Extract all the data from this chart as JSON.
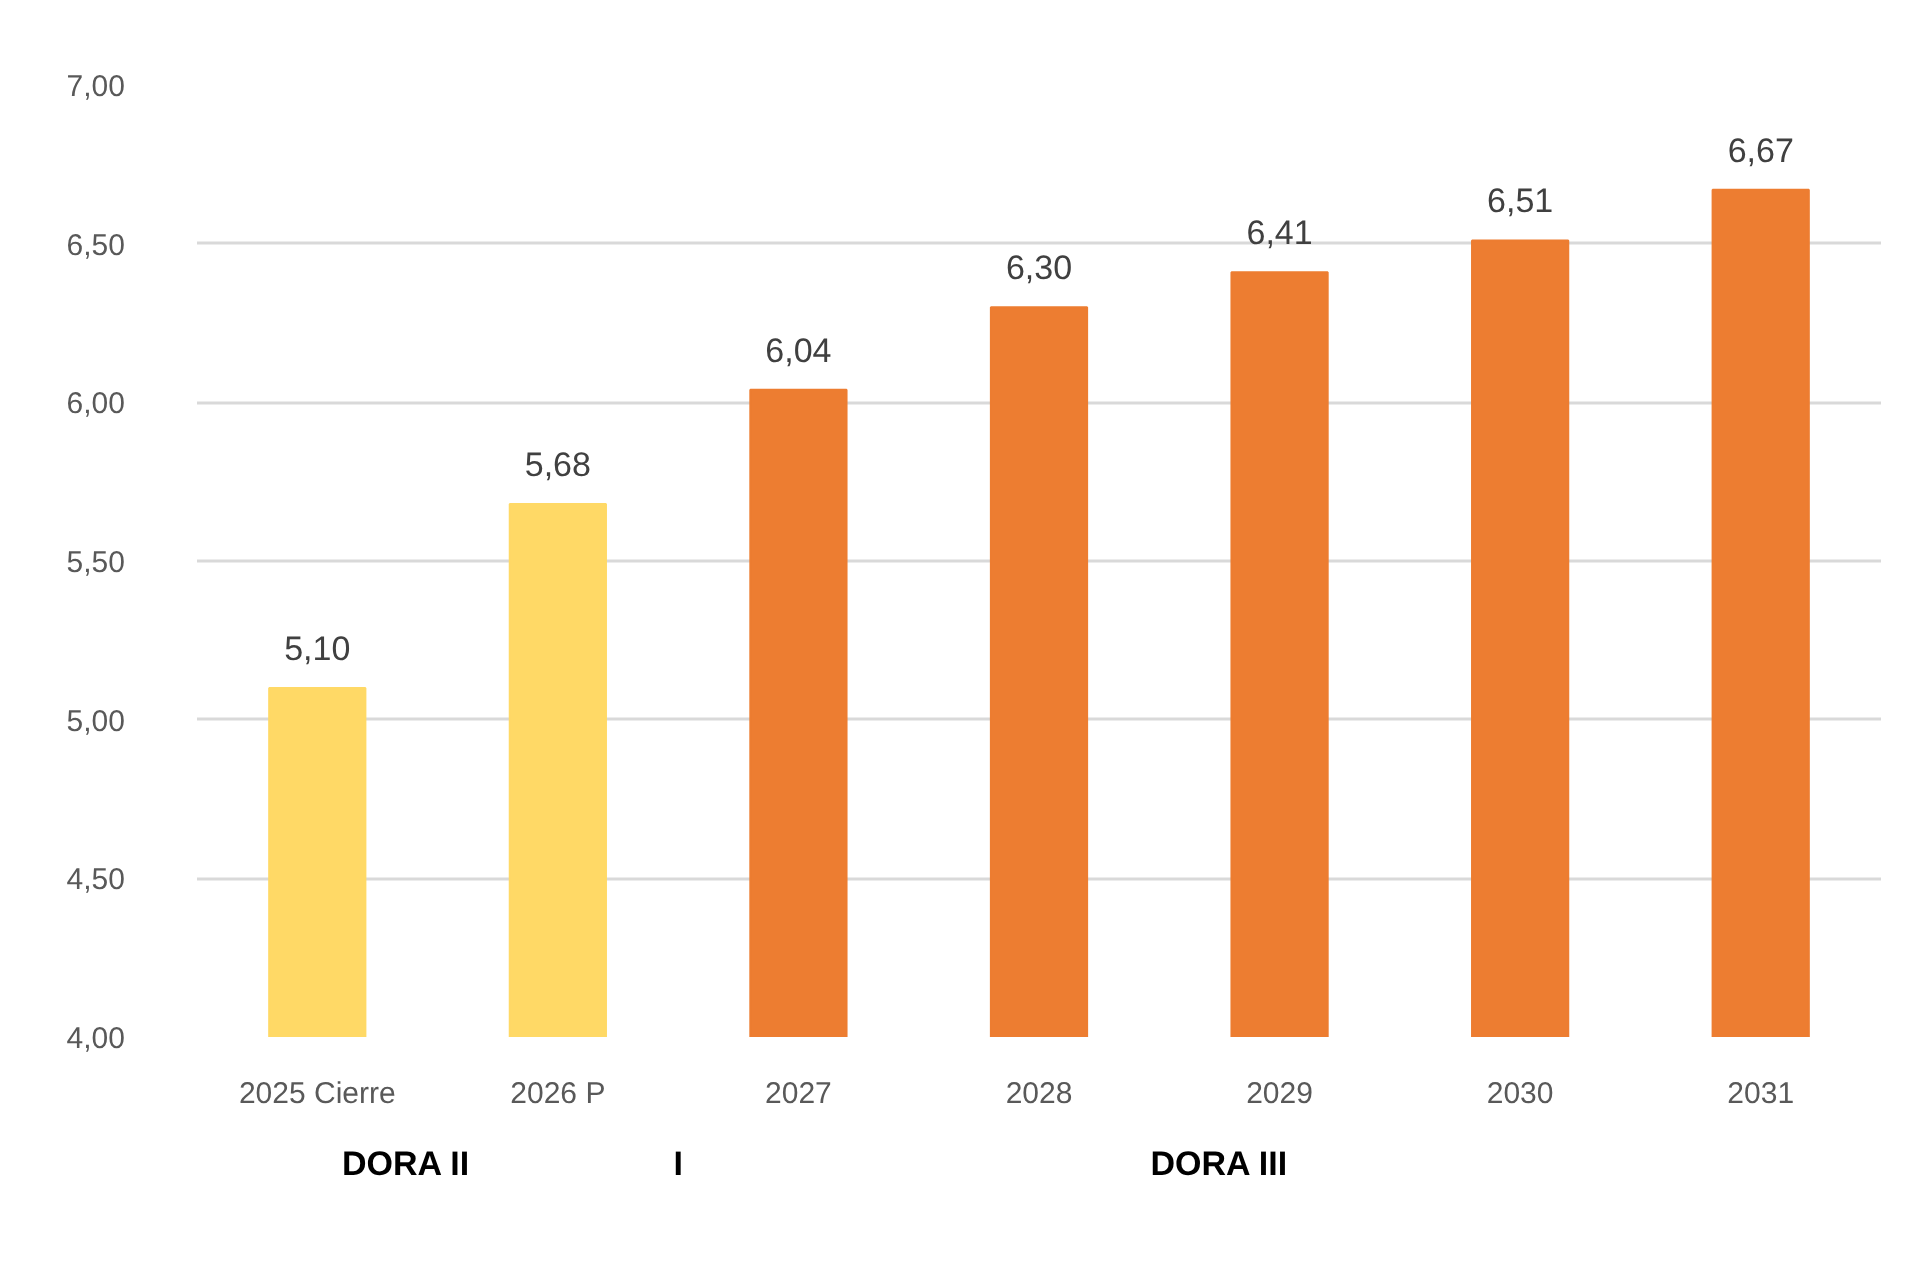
{
  "chart_data": {
    "type": "bar",
    "categories": [
      "2025 Cierre",
      "2026 P",
      "2027",
      "2028",
      "2029",
      "2030",
      "2031"
    ],
    "values": [
      5.1,
      5.68,
      6.04,
      6.3,
      6.41,
      6.51,
      6.67
    ],
    "colors": [
      "#ffd966",
      "#ffd966",
      "#ed7d31",
      "#ed7d31",
      "#ed7d31",
      "#ed7d31",
      "#ed7d31"
    ],
    "value_labels": [
      "5,10",
      "5,68",
      "6,04",
      "6,30",
      "6,41",
      "6,51",
      "6,67"
    ],
    "ylim": [
      4,
      7
    ],
    "yticks": [
      {
        "value": 4,
        "label": "4,00"
      },
      {
        "value": 4.5,
        "label": "4,50"
      },
      {
        "value": 5,
        "label": "5,00"
      },
      {
        "value": 5.5,
        "label": "5,50"
      },
      {
        "value": 6,
        "label": "6,00"
      },
      {
        "value": 6.5,
        "label": "6,50"
      },
      {
        "value": 7,
        "label": "7,00"
      }
    ],
    "grid": "y",
    "annotations": [
      "DORA II",
      "I",
      "DORA III"
    ]
  }
}
